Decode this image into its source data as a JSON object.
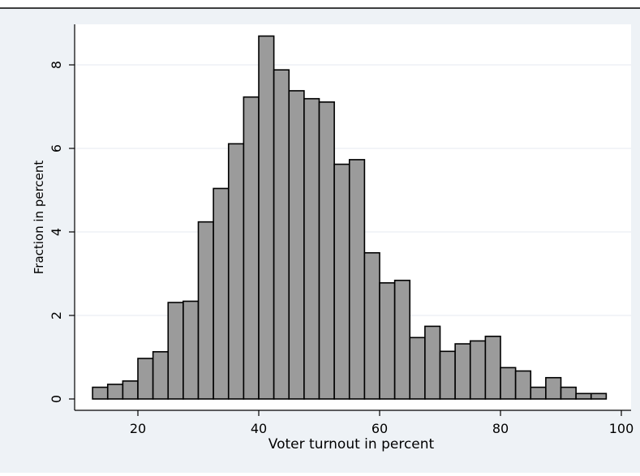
{
  "chart_data": {
    "type": "bar",
    "subtype": "histogram",
    "xlabel": "Voter turnout in percent",
    "ylabel": "Fraction in percent",
    "xlim": [
      10,
      100
    ],
    "ylim": [
      0,
      8.8
    ],
    "x_ticks": [
      20,
      40,
      60,
      80,
      100
    ],
    "y_ticks": [
      0,
      2,
      4,
      6,
      8
    ],
    "grid": true,
    "bin_width": 2.5,
    "bins": [
      {
        "start": 12.5,
        "value": 0.28
      },
      {
        "start": 15.0,
        "value": 0.35
      },
      {
        "start": 17.5,
        "value": 0.43
      },
      {
        "start": 20.0,
        "value": 0.97
      },
      {
        "start": 22.5,
        "value": 1.13
      },
      {
        "start": 25.0,
        "value": 2.31
      },
      {
        "start": 27.5,
        "value": 2.34
      },
      {
        "start": 30.0,
        "value": 4.24
      },
      {
        "start": 32.5,
        "value": 5.04
      },
      {
        "start": 35.0,
        "value": 6.11
      },
      {
        "start": 37.5,
        "value": 7.23
      },
      {
        "start": 40.0,
        "value": 8.69
      },
      {
        "start": 42.5,
        "value": 7.88
      },
      {
        "start": 45.0,
        "value": 7.38
      },
      {
        "start": 47.5,
        "value": 7.19
      },
      {
        "start": 50.0,
        "value": 7.11
      },
      {
        "start": 52.5,
        "value": 5.62
      },
      {
        "start": 55.0,
        "value": 5.73
      },
      {
        "start": 57.5,
        "value": 3.5
      },
      {
        "start": 60.0,
        "value": 2.78
      },
      {
        "start": 62.5,
        "value": 2.84
      },
      {
        "start": 65.0,
        "value": 1.47
      },
      {
        "start": 67.5,
        "value": 1.74
      },
      {
        "start": 70.0,
        "value": 1.14
      },
      {
        "start": 72.5,
        "value": 1.32
      },
      {
        "start": 75.0,
        "value": 1.39
      },
      {
        "start": 77.5,
        "value": 1.5
      },
      {
        "start": 80.0,
        "value": 0.75
      },
      {
        "start": 82.5,
        "value": 0.67
      },
      {
        "start": 85.0,
        "value": 0.28
      },
      {
        "start": 87.5,
        "value": 0.51
      },
      {
        "start": 90.0,
        "value": 0.28
      },
      {
        "start": 92.5,
        "value": 0.13
      },
      {
        "start": 95.0,
        "value": 0.13
      }
    ],
    "colors": {
      "bar_fill": "#9b9b9b",
      "bar_stroke": "#000000",
      "background": "#eef2f6",
      "plot_background": "#ffffff",
      "grid": "#e4eaf0"
    }
  }
}
